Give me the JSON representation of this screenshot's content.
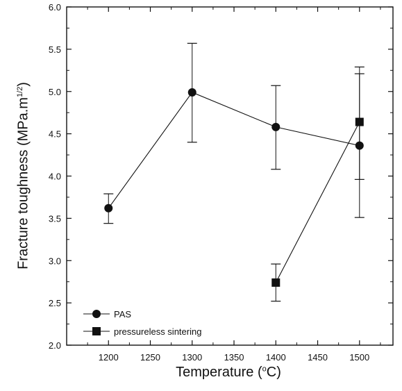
{
  "chart_data": {
    "type": "scatter",
    "xlabel": "Temperature (°C)",
    "xlabel_main": "Temperature (",
    "xlabel_sup": "o",
    "xlabel_end": "C)",
    "ylabel": "Fracture toughness (MPa.m^1/2)",
    "ylabel_main": "Fracture toughness (MPa.m",
    "ylabel_sup": "1/2",
    "ylabel_end": ")",
    "xlim": [
      1150,
      1540
    ],
    "ylim": [
      2.0,
      6.0
    ],
    "xticks": [
      "1200",
      "1250",
      "1300",
      "1350",
      "1400",
      "1450",
      "1500"
    ],
    "xtick_values": [
      1200,
      1250,
      1300,
      1350,
      1400,
      1450,
      1500
    ],
    "yticks": [
      "2.0",
      "2.5",
      "3.0",
      "3.5",
      "4.0",
      "4.5",
      "5.0",
      "5.5",
      "6.0"
    ],
    "ytick_values": [
      2.0,
      2.5,
      3.0,
      3.5,
      4.0,
      4.5,
      5.0,
      5.5,
      6.0
    ],
    "legend_position": "bottom-left",
    "series": [
      {
        "name": "PAS",
        "marker": "circle",
        "x": [
          1200,
          1300,
          1400,
          1500
        ],
        "y": [
          3.62,
          4.99,
          4.58,
          4.36
        ],
        "err_low": [
          3.44,
          4.4,
          4.08,
          3.51
        ],
        "err_high": [
          3.79,
          5.57,
          5.07,
          5.21
        ]
      },
      {
        "name": "pressureless sintering",
        "marker": "square",
        "x": [
          1400,
          1500
        ],
        "y": [
          2.74,
          4.64
        ],
        "err_low": [
          2.52,
          3.96
        ],
        "err_high": [
          2.96,
          5.29
        ]
      }
    ],
    "colors": {
      "line": "#111111",
      "marker": "#111111",
      "axis": "#111111"
    }
  }
}
